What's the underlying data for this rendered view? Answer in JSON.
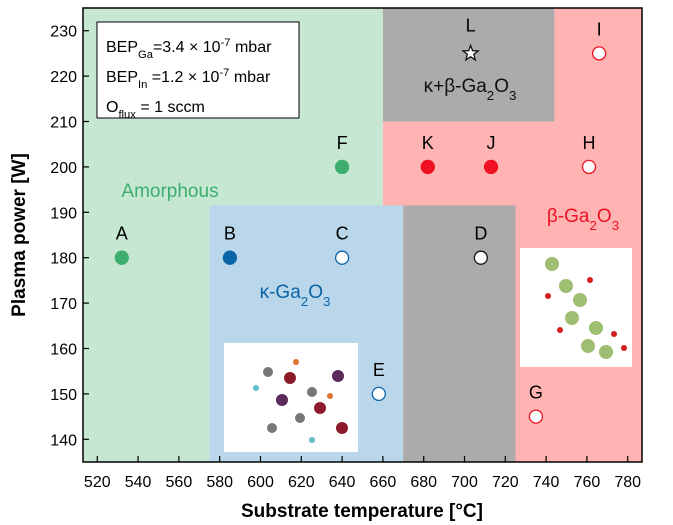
{
  "chart_data": {
    "type": "scatter",
    "x_label": "Substrate temperature [°C]",
    "y_label": "Plasma power [W]",
    "xlim": [
      513,
      787
    ],
    "xticks": [
      520,
      540,
      560,
      580,
      600,
      620,
      640,
      660,
      680,
      700,
      720,
      740,
      760,
      780
    ],
    "ylim": [
      135,
      235
    ],
    "yticks": [
      140,
      150,
      160,
      170,
      180,
      190,
      200,
      210,
      220,
      230
    ],
    "annotation": [
      [
        {
          "text": "BEP"
        },
        {
          "text": "Ga",
          "sub": true
        },
        {
          "text": "=3.4 × 10"
        },
        {
          "text": "-7",
          "sup": true
        },
        {
          "text": " mbar"
        }
      ],
      [
        {
          "text": "BEP"
        },
        {
          "text": "In",
          "sub": true
        },
        {
          "text": " =1.2 × 10"
        },
        {
          "text": "-7",
          "sup": true
        },
        {
          "text": " mbar"
        }
      ],
      [
        {
          "text": "O"
        },
        {
          "text": "flux",
          "sub": true
        },
        {
          "text": " = 1 sccm"
        }
      ]
    ],
    "regions": [
      {
        "x": [
          513,
          660
        ],
        "y": [
          135,
          235
        ],
        "color": "#c6e8d3",
        "label": [
          {
            "text": "Amorphous"
          }
        ],
        "label_color": "#3dae6e"
      },
      {
        "x": [
          660,
          787
        ],
        "y": [
          135,
          235
        ],
        "color": "#ffb3b3",
        "label": [
          {
            "text": "β-Ga"
          },
          {
            "text": "2",
            "sub": true
          },
          {
            "text": "O"
          },
          {
            "text": "3",
            "sub": true
          }
        ],
        "label_color": "#ee1122"
      },
      {
        "x": [
          660,
          744
        ],
        "y": [
          210,
          235
        ],
        "color": "#ababab",
        "label": [
          {
            "text": "κ+β-Ga"
          },
          {
            "text": "2",
            "sub": true
          },
          {
            "text": "O"
          },
          {
            "text": "3",
            "sub": true
          }
        ],
        "label_color": "#111111"
      },
      {
        "x": [
          575,
          670
        ],
        "y": [
          135,
          191.5
        ],
        "color": "#b9d6ea",
        "label": [
          {
            "text": "κ-Ga"
          },
          {
            "text": "2",
            "sub": true
          },
          {
            "text": "O"
          },
          {
            "text": "3",
            "sub": true
          }
        ],
        "label_color": "#0a64a8"
      },
      {
        "x": [
          670,
          725
        ],
        "y": [
          135,
          191.5
        ],
        "color": "#ababab"
      }
    ],
    "points": [
      {
        "label": "A",
        "x": 532,
        "y": 180,
        "fill": "#3dae6e",
        "edge": "#3dae6e",
        "marker": "circle"
      },
      {
        "label": "B",
        "x": 585,
        "y": 180,
        "fill": "#0a64a8",
        "edge": "#0a64a8",
        "marker": "circle"
      },
      {
        "label": "C",
        "x": 640,
        "y": 180,
        "fill": "#ffffff",
        "edge": "#0a64a8",
        "marker": "circle"
      },
      {
        "label": "D",
        "x": 708,
        "y": 180,
        "fill": "#ffffff",
        "edge": "#111111",
        "marker": "circle"
      },
      {
        "label": "E",
        "x": 658,
        "y": 150,
        "fill": "#ffffff",
        "edge": "#0a64a8",
        "marker": "circle"
      },
      {
        "label": "F",
        "x": 640,
        "y": 200,
        "fill": "#3dae6e",
        "edge": "#3dae6e",
        "marker": "circle"
      },
      {
        "label": "G",
        "x": 735,
        "y": 145,
        "fill": "#ffffff",
        "edge": "#ee1122",
        "marker": "circle"
      },
      {
        "label": "H",
        "x": 761,
        "y": 200,
        "fill": "#ffffff",
        "edge": "#ee1122",
        "marker": "circle"
      },
      {
        "label": "I",
        "x": 766,
        "y": 225,
        "fill": "#ffffff",
        "edge": "#ee1122",
        "marker": "circle"
      },
      {
        "label": "J",
        "x": 713,
        "y": 200,
        "fill": "#ee1122",
        "edge": "#ee1122",
        "marker": "circle"
      },
      {
        "label": "K",
        "x": 682,
        "y": 200,
        "fill": "#ee1122",
        "edge": "#ee1122",
        "marker": "circle"
      },
      {
        "label": "L",
        "x": 703,
        "y": 225,
        "fill": "#ffffff",
        "edge": "#111111",
        "marker": "star"
      }
    ]
  }
}
